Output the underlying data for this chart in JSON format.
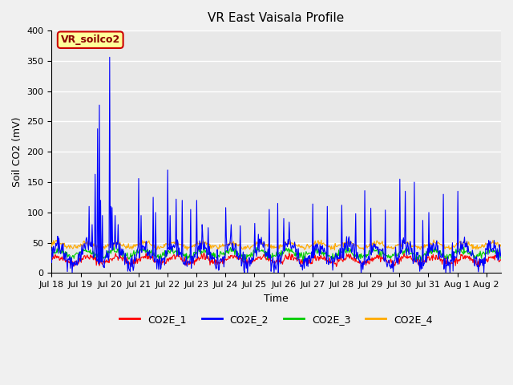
{
  "title": "VR East Vaisala Profile",
  "xlabel": "Time",
  "ylabel": "Soil CO2 (mV)",
  "ylim": [
    0,
    400
  ],
  "yticks": [
    0,
    50,
    100,
    150,
    200,
    250,
    300,
    350,
    400
  ],
  "xlim": [
    0,
    15.5
  ],
  "x_tick_labels": [
    "Jul 18",
    "Jul 19",
    "Jul 20",
    "Jul 21",
    "Jul 22",
    "Jul 23",
    "Jul 24",
    "Jul 25",
    "Jul 26",
    "Jul 27",
    "Jul 28",
    "Jul 29",
    "Jul 30",
    "Jul 31",
    "Aug 1",
    "Aug 2"
  ],
  "legend_labels": [
    "CO2E_1",
    "CO2E_2",
    "CO2E_3",
    "CO2E_4"
  ],
  "legend_colors": [
    "#ff0000",
    "#0000ff",
    "#00cc00",
    "#ffaa00"
  ],
  "annotation_text": "VR_soilco2",
  "annotation_bg": "#ffff99",
  "annotation_border": "#cc0000",
  "annotation_text_color": "#8b0000",
  "bg_color": "#e8e8e8",
  "grid_color": "#ffffff",
  "seed": 42
}
